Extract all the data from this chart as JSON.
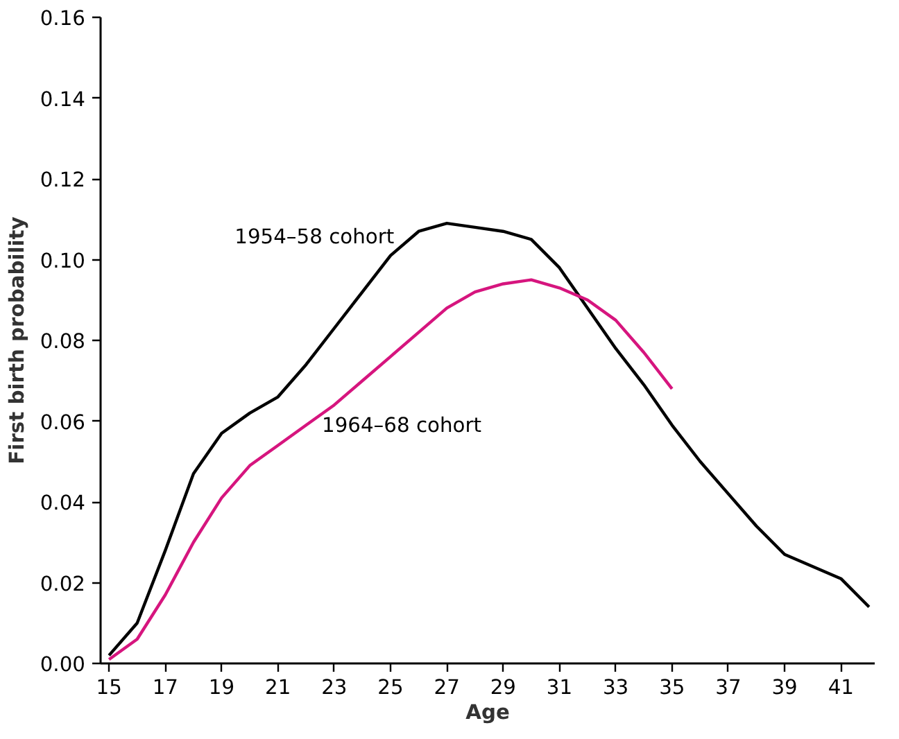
{
  "chart_data": {
    "type": "line",
    "xlabel": "Age",
    "ylabel": "First birth probability",
    "x": [
      15,
      16,
      17,
      18,
      19,
      20,
      21,
      22,
      23,
      24,
      25,
      26,
      27,
      28,
      29,
      30,
      31,
      32,
      33,
      34,
      35,
      36,
      37,
      38,
      39,
      40,
      41,
      42
    ],
    "series": [
      {
        "name": "1954–58 cohort",
        "color": "#000000",
        "values": [
          0.002,
          0.01,
          0.028,
          0.047,
          0.057,
          0.062,
          0.066,
          0.074,
          0.083,
          0.092,
          0.101,
          0.107,
          0.109,
          0.108,
          0.107,
          0.105,
          0.098,
          0.088,
          0.078,
          0.069,
          0.059,
          0.05,
          0.042,
          0.034,
          0.027,
          0.024,
          0.021,
          0.014
        ]
      },
      {
        "name": "1964–68 cohort",
        "color": "#d6157e",
        "values": [
          0.001,
          0.006,
          0.017,
          0.03,
          0.041,
          0.049,
          0.054,
          0.059,
          0.064,
          0.07,
          0.076,
          0.082,
          0.088,
          0.092,
          0.094,
          0.095,
          0.093,
          0.09,
          0.085,
          0.077,
          0.068,
          null,
          null,
          null,
          null,
          null,
          null,
          null
        ]
      }
    ],
    "xlim": [
      14.7,
      42.2
    ],
    "ylim": [
      0,
      0.16
    ],
    "xticks": [
      15,
      17,
      19,
      21,
      23,
      25,
      27,
      29,
      31,
      33,
      35,
      37,
      39,
      41
    ],
    "yticks": [
      {
        "value": 0,
        "label": "0.00"
      },
      {
        "value": 0.02,
        "label": "0.02"
      },
      {
        "value": 0.04,
        "label": "0.04"
      },
      {
        "value": 0.06,
        "label": "0.06"
      },
      {
        "value": 0.08,
        "label": "0.08"
      },
      {
        "value": 0.1,
        "label": "0.10"
      },
      {
        "value": 0.12,
        "label": "0.12"
      },
      {
        "value": 0.14,
        "label": "0.14"
      },
      {
        "value": 0.16,
        "label": "0.16"
      }
    ],
    "grid": false,
    "legend": false
  }
}
